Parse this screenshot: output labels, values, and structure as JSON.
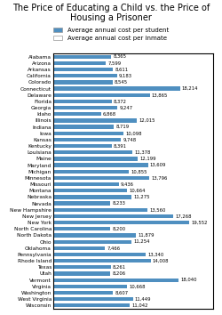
{
  "chart_data": {
    "type": "bar",
    "orientation": "horizontal",
    "title": "The Price of Educating a Child vs. the Price of Housing a Prisoner",
    "categories": [
      "Alabama",
      "Arizona",
      "Arkansas",
      "California",
      "Colorado",
      "Connecticut",
      "Delaware",
      "Florida",
      "Georgia",
      "Idaho",
      "Illinois",
      "Indiana",
      "Iowa",
      "Kansas",
      "Kentucky",
      "Louisiana",
      "Maine",
      "Maryland",
      "Michigan",
      "Minnesota",
      "Missouri",
      "Montana",
      "Nebraska",
      "Nevada",
      "New Hampshire",
      "New Jersey",
      "New York",
      "North Carolina",
      "North Dakota",
      "Ohio",
      "Oklahoma",
      "Pennsylvania",
      "Rhode Island",
      "Texas",
      "Utah",
      "Vermont",
      "Virginia",
      "Washington",
      "West Virginia",
      "Wisconsin"
    ],
    "series": [
      {
        "name": "Average annual cost per student",
        "color": "#4f8fc0",
        "values": [
          8365,
          7599,
          8611,
          9183,
          8545,
          18214,
          13865,
          8372,
          9247,
          6868,
          12015,
          8719,
          10098,
          9748,
          8391,
          11378,
          12199,
          13609,
          10855,
          13796,
          9436,
          10664,
          11275,
          8233,
          13560,
          17268,
          19552,
          8200,
          11879,
          11254,
          7466,
          13340,
          14008,
          8261,
          8206,
          18040,
          10668,
          8607,
          11449,
          11042
        ],
        "value_labels": [
          "8,365",
          "7,599",
          "8,611",
          "9,183",
          "8,545",
          "18,214",
          "13,865",
          "8,372",
          "9,247",
          "6,868",
          "12,015",
          "8,719",
          "10,098",
          "9,748",
          "8,391",
          "11,378",
          "12,199",
          "13,609",
          "10,855",
          "13,796",
          "9,436",
          "10,664",
          "11,275",
          "8,233",
          "13,560",
          "17,268",
          "19,552",
          "8,200",
          "11,879",
          "11,254",
          "7,466",
          "13,340",
          "14,008",
          "8,261",
          "8,206",
          "18,040",
          "10,668",
          "8,607",
          "11,449",
          "11,042"
        ]
      },
      {
        "name": "Average annual cost per inmate",
        "color": "#ffffff",
        "values": [
          null,
          null,
          null,
          null,
          null,
          null,
          null,
          null,
          null,
          null,
          null,
          null,
          null,
          null,
          null,
          null,
          null,
          null,
          null,
          null,
          null,
          null,
          null,
          null,
          null,
          null,
          null,
          null,
          null,
          null,
          null,
          null,
          null,
          null,
          null,
          null,
          null,
          null,
          null,
          null
        ]
      }
    ],
    "xlim": [
      0,
      23000
    ],
    "xticks": [],
    "data_labels": true,
    "tick_labels": "y",
    "grid": false,
    "legend": "upper center"
  }
}
